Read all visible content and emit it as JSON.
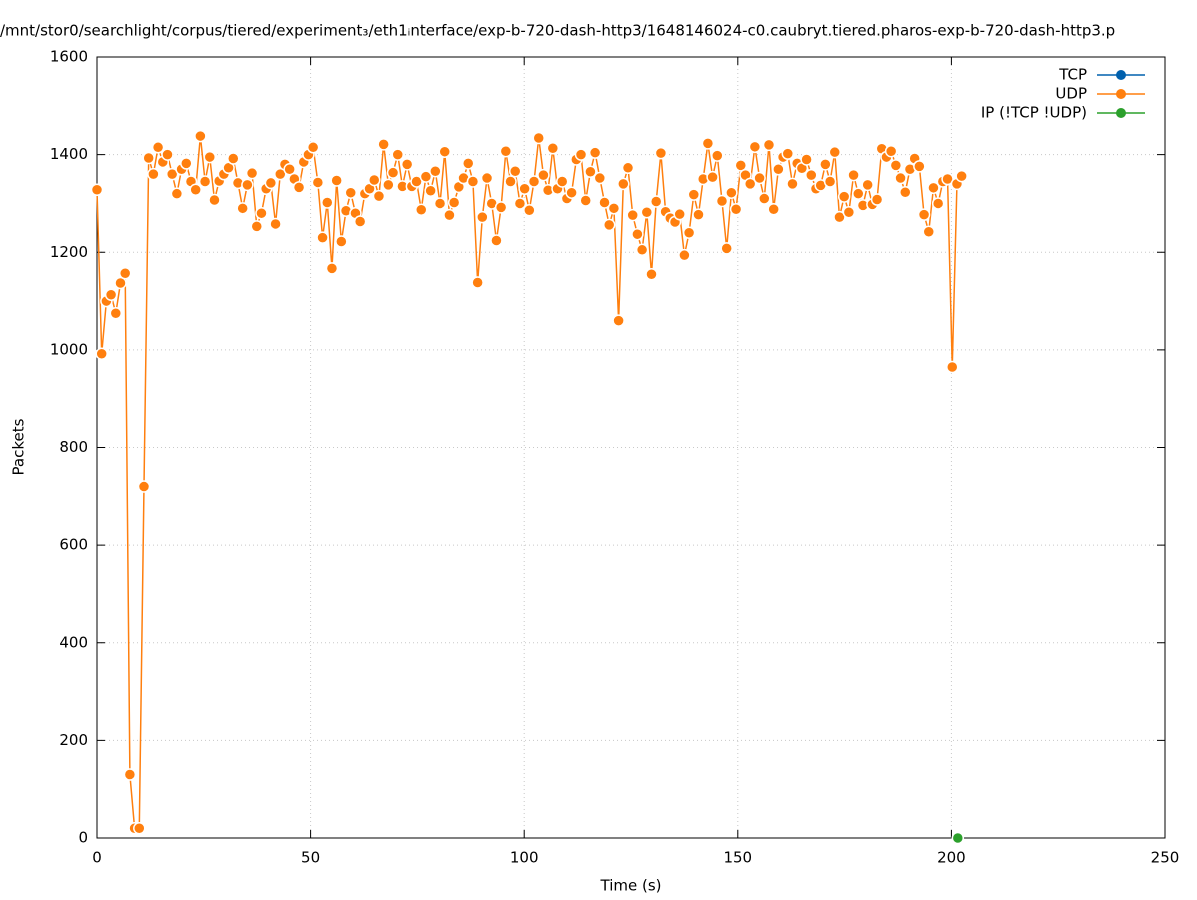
{
  "chart_data": {
    "type": "line",
    "title": "/mnt/stor0/searchlight/corpus/tiered/experiment₃/eth1ᵢnterface/exp-b-720-dash-http3/1648146024-c0.caubryt.tiered.pharos-exp-b-720-dash-http3.p",
    "x_label": "Time (s)",
    "y_label": "Packets",
    "xlim": [
      0,
      250
    ],
    "xticks": [
      0,
      50,
      100,
      150,
      200,
      250
    ],
    "ylim": [
      0,
      1600
    ],
    "yticks": [
      0,
      200,
      400,
      600,
      800,
      1000,
      1200,
      1400,
      1600
    ],
    "grid": true,
    "legend": "top-right",
    "series": [
      {
        "name": "TCP",
        "color": "#0060ad",
        "x": [],
        "values": []
      },
      {
        "name": "UDP",
        "color": "#ff7f0e",
        "x": [
          0,
          1.1,
          2.2,
          3.3,
          4.4,
          5.5,
          6.6,
          7.7,
          8.8,
          9.9,
          11,
          12.1,
          13.2,
          14.3,
          15.4,
          16.5,
          17.6,
          18.7,
          19.8,
          20.9,
          22,
          23.1,
          24.2,
          25.3,
          26.4,
          27.5,
          28.6,
          29.7,
          30.8,
          31.9,
          33,
          34.1,
          35.2,
          36.3,
          37.4,
          38.5,
          39.6,
          40.7,
          41.8,
          42.9,
          44,
          45.1,
          46.2,
          47.3,
          48.4,
          49.5,
          50.6,
          51.7,
          52.8,
          53.9,
          55,
          56.1,
          57.2,
          58.3,
          59.4,
          60.5,
          61.6,
          62.7,
          63.8,
          64.9,
          66,
          67.1,
          68.2,
          69.3,
          70.4,
          71.5,
          72.6,
          73.7,
          74.8,
          75.9,
          77,
          78.1,
          79.2,
          80.3,
          81.4,
          82.5,
          83.6,
          84.7,
          85.8,
          86.9,
          88,
          89.1,
          90.2,
          91.3,
          92.4,
          93.5,
          94.6,
          95.7,
          96.8,
          97.9,
          99,
          100.1,
          101.2,
          102.3,
          103.4,
          104.5,
          105.6,
          106.7,
          107.8,
          108.9,
          110,
          111.1,
          112.2,
          113.3,
          114.4,
          115.5,
          116.6,
          117.7,
          118.8,
          119.9,
          121,
          122.1,
          123.2,
          124.3,
          125.4,
          126.5,
          127.6,
          128.7,
          129.8,
          130.9,
          132,
          133.1,
          134.2,
          135.3,
          136.4,
          137.5,
          138.6,
          139.7,
          140.8,
          141.9,
          143,
          144.1,
          145.2,
          146.3,
          147.4,
          148.5,
          149.6,
          150.7,
          151.8,
          152.9,
          154,
          155.1,
          156.2,
          157.3,
          158.4,
          159.5,
          160.6,
          161.7,
          162.8,
          163.9,
          165,
          166.1,
          167.2,
          168.3,
          169.4,
          170.5,
          171.6,
          172.7,
          173.8,
          174.9,
          176,
          177.1,
          178.2,
          179.3,
          180.4,
          181.5,
          182.6,
          183.7,
          184.8,
          185.9,
          187,
          188.1,
          189.2,
          190.3,
          191.4,
          192.5,
          193.6,
          194.7,
          195.8,
          196.9,
          198,
          199.1,
          200.2,
          201.3,
          202.4
        ],
        "values": [
          1328,
          992,
          1100,
          1113,
          1075,
          1137,
          1157,
          130,
          20,
          20,
          720,
          1393,
          1360,
          1415,
          1385,
          1400,
          1360,
          1320,
          1370,
          1382,
          1345,
          1328,
          1438,
          1345,
          1395,
          1307,
          1346,
          1360,
          1373,
          1392,
          1342,
          1290,
          1338,
          1362,
          1253,
          1280,
          1330,
          1342,
          1258,
          1360,
          1380,
          1370,
          1350,
          1333,
          1385,
          1400,
          1415,
          1343,
          1230,
          1302,
          1167,
          1347,
          1222,
          1285,
          1322,
          1280,
          1263,
          1320,
          1330,
          1348,
          1315,
          1421,
          1338,
          1363,
          1400,
          1335,
          1380,
          1335,
          1345,
          1287,
          1355,
          1326,
          1366,
          1300,
          1406,
          1276,
          1302,
          1334,
          1352,
          1382,
          1345,
          1138,
          1272,
          1352,
          1300,
          1224,
          1292,
          1407,
          1345,
          1366,
          1300,
          1330,
          1286,
          1345,
          1434,
          1358,
          1327,
          1413,
          1330,
          1345,
          1310,
          1322,
          1390,
          1400,
          1306,
          1365,
          1404,
          1352,
          1302,
          1256,
          1290,
          1060,
          1340,
          1373,
          1276,
          1237,
          1205,
          1282,
          1155,
          1304,
          1403,
          1283,
          1270,
          1262,
          1278,
          1194,
          1240,
          1318,
          1277,
          1350,
          1423,
          1354,
          1398,
          1305,
          1208,
          1322,
          1288,
          1378,
          1358,
          1340,
          1416,
          1352,
          1310,
          1420,
          1288,
          1370,
          1395,
          1402,
          1340,
          1382,
          1372,
          1390,
          1358,
          1330,
          1337,
          1380,
          1345,
          1405,
          1272,
          1314,
          1282,
          1358,
          1320,
          1296,
          1338,
          1298,
          1308,
          1412,
          1395,
          1407,
          1378,
          1352,
          1323,
          1370,
          1392,
          1376,
          1277,
          1242,
          1332,
          1300,
          1345,
          1350,
          965,
          1340,
          1356
        ]
      },
      {
        "name": "IP (!TCP  !UDP)",
        "color": "#2ca02c",
        "x": [
          201.5
        ],
        "values": [
          0
        ]
      }
    ]
  }
}
